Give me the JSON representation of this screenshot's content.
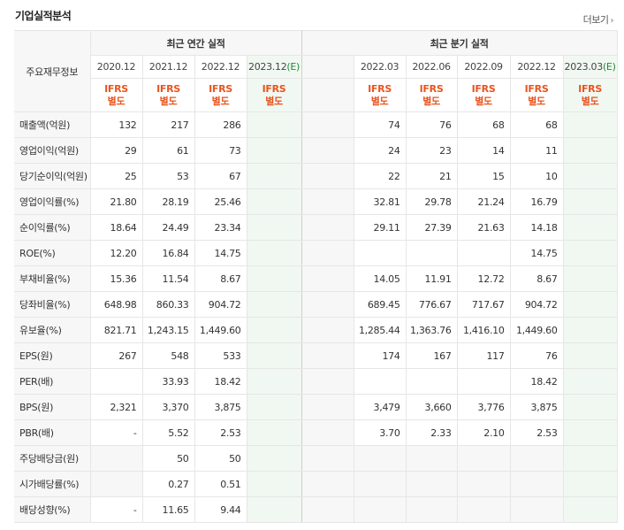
{
  "header": {
    "title": "기업실적분석",
    "more_label": "더보기"
  },
  "table": {
    "corner_label": "주요재무정보",
    "annual_group": "최근 연간 실적",
    "quarter_group": "최근 분기 실적",
    "annual_periods": [
      "2020.12",
      "2021.12",
      "2022.12",
      "2023.12"
    ],
    "quarter_periods": [
      "2022.03",
      "2022.06",
      "2022.09",
      "2022.12",
      "2023.03"
    ],
    "estimate_mark": "(E)",
    "ifrs_label": "IFRS",
    "ifrs_sub": "별도",
    "rows": [
      {
        "label": "매출액(억원)",
        "annual": [
          "132",
          "217",
          "286",
          ""
        ],
        "quarter": [
          "74",
          "76",
          "68",
          "68",
          ""
        ]
      },
      {
        "label": "영업이익(억원)",
        "annual": [
          "29",
          "61",
          "73",
          ""
        ],
        "quarter": [
          "24",
          "23",
          "14",
          "11",
          ""
        ]
      },
      {
        "label": "당기순이익(억원)",
        "annual": [
          "25",
          "53",
          "67",
          ""
        ],
        "quarter": [
          "22",
          "21",
          "15",
          "10",
          ""
        ]
      },
      {
        "label": "영업이익률(%)",
        "annual": [
          "21.80",
          "28.19",
          "25.46",
          ""
        ],
        "quarter": [
          "32.81",
          "29.78",
          "21.24",
          "16.79",
          ""
        ]
      },
      {
        "label": "순이익률(%)",
        "annual": [
          "18.64",
          "24.49",
          "23.34",
          ""
        ],
        "quarter": [
          "29.11",
          "27.39",
          "21.63",
          "14.18",
          ""
        ]
      },
      {
        "label": "ROE(%)",
        "annual": [
          "12.20",
          "16.84",
          "14.75",
          ""
        ],
        "quarter": [
          "",
          "",
          "",
          "14.75",
          ""
        ]
      },
      {
        "label": "부채비율(%)",
        "annual": [
          "15.36",
          "11.54",
          "8.67",
          ""
        ],
        "quarter": [
          "14.05",
          "11.91",
          "12.72",
          "8.67",
          ""
        ]
      },
      {
        "label": "당좌비율(%)",
        "annual": [
          "648.98",
          "860.33",
          "904.72",
          ""
        ],
        "quarter": [
          "689.45",
          "776.67",
          "717.67",
          "904.72",
          ""
        ]
      },
      {
        "label": "유보율(%)",
        "annual": [
          "821.71",
          "1,243.15",
          "1,449.60",
          ""
        ],
        "quarter": [
          "1,285.44",
          "1,363.76",
          "1,416.10",
          "1,449.60",
          ""
        ]
      },
      {
        "label": "EPS(원)",
        "annual": [
          "267",
          "548",
          "533",
          ""
        ],
        "quarter": [
          "174",
          "167",
          "117",
          "76",
          ""
        ]
      },
      {
        "label": "PER(배)",
        "annual": [
          "",
          "33.93",
          "18.42",
          ""
        ],
        "quarter": [
          "",
          "",
          "",
          "18.42",
          ""
        ]
      },
      {
        "label": "BPS(원)",
        "annual": [
          "2,321",
          "3,370",
          "3,875",
          ""
        ],
        "quarter": [
          "3,479",
          "3,660",
          "3,776",
          "3,875",
          ""
        ]
      },
      {
        "label": "PBR(배)",
        "annual": [
          "-",
          "5.52",
          "2.53",
          ""
        ],
        "quarter": [
          "3.70",
          "2.33",
          "2.10",
          "2.53",
          ""
        ]
      },
      {
        "label": "주당배당금(원)",
        "annual": [
          "",
          "50",
          "50",
          ""
        ],
        "quarter": [
          "",
          "",
          "",
          "",
          ""
        ]
      },
      {
        "label": "시가배당률(%)",
        "annual": [
          "",
          "0.27",
          "0.51",
          ""
        ],
        "quarter": [
          "",
          "",
          "",
          "",
          ""
        ]
      },
      {
        "label": "배당성향(%)",
        "annual": [
          "-",
          "11.65",
          "9.44",
          ""
        ],
        "quarter": [
          "",
          "",
          "",
          "",
          ""
        ]
      }
    ]
  }
}
